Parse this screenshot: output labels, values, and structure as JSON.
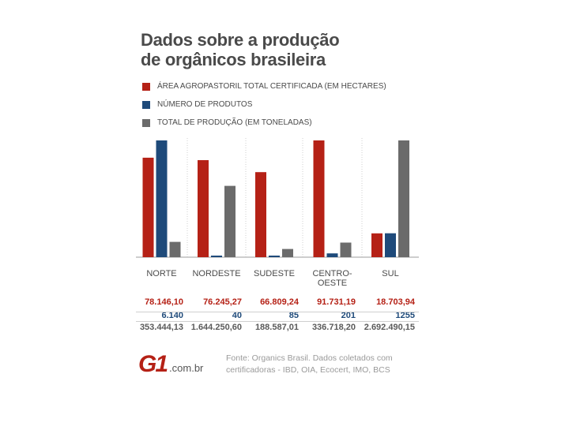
{
  "title_line1": "Dados sobre a produção",
  "title_line2": "de orgânicos brasileira",
  "legend": [
    {
      "label": "ÁREA AGROPASTORIL TOTAL CERTIFICADA (EM HECTARES)",
      "color": "#b52116"
    },
    {
      "label": "NÚMERO DE PRODUTOS",
      "color": "#1e4a7a"
    },
    {
      "label": "TOTAL DE  PRODUÇÃO (EM TONELADAS)",
      "color": "#6b6b6b"
    }
  ],
  "chart_data": {
    "type": "bar",
    "title": "Dados sobre a produção de orgânicos brasileira",
    "categories": [
      "NORTE",
      "NORDESTE",
      "SUDESTE",
      "CENTRO-OESTE",
      "SUL"
    ],
    "series": [
      {
        "name": "ÁREA AGROPASTORIL TOTAL CERTIFICADA (EM HECTARES)",
        "values": [
          78146.1,
          76245.27,
          66809.24,
          91731.19,
          18703.94
        ],
        "color": "#b52116"
      },
      {
        "name": "NÚMERO DE PRODUTOS",
        "values": [
          6140,
          40,
          85,
          201,
          1255
        ],
        "color": "#1e4a7a"
      },
      {
        "name": "TOTAL DE  PRODUÇÃO (EM TONELADAS)",
        "values": [
          353444.13,
          1644250.6,
          188587.01,
          336718.2,
          2692490.15
        ],
        "color": "#6b6b6b"
      }
    ],
    "note": "Each series drawn on its own scale (non-comparable units)"
  },
  "table": {
    "area_values": [
      "78.146,10",
      "76.245,27",
      "66.809,24",
      "91.731,19",
      "18.703,94"
    ],
    "num_values": [
      "6.140",
      "40",
      "85",
      "201",
      "1255"
    ],
    "total_values": [
      "353.444,13",
      "1.644.250,60",
      "188.587,01",
      "336.718,20",
      "2.692.490,15"
    ]
  },
  "category_labels": [
    {
      "line1": "NORTE",
      "line2": ""
    },
    {
      "line1": "NORDESTE",
      "line2": ""
    },
    {
      "line1": "SUDESTE",
      "line2": ""
    },
    {
      "line1": "CENTRO-",
      "line2": "OESTE"
    },
    {
      "line1": "SUL",
      "line2": ""
    }
  ],
  "source_line1": "Fonte: Organics Brasil. Dados coletados com",
  "source_line2": "certificadoras - IBD, OIA, Ecocert, IMO, BCS",
  "logo_text": "G1",
  "logo_domain": ".com.br"
}
